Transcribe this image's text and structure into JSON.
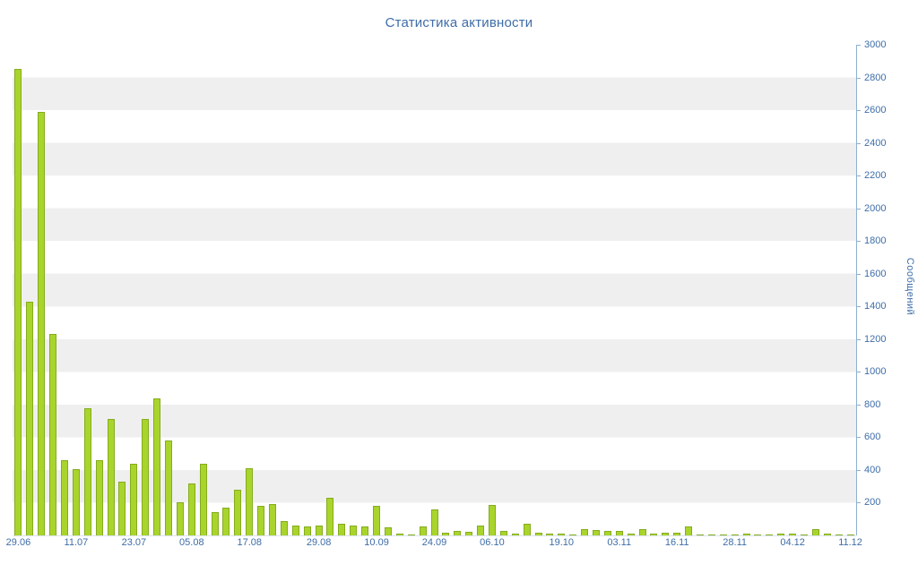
{
  "page": {
    "title": "Статистика активности"
  },
  "colors": {
    "text": "#3E6DA8",
    "axis": "#8FAFD2",
    "band": "#EFEFEF",
    "bar_fill": "#A9D42C",
    "bar_border": "#85AC1E",
    "background": "#FFFFFF"
  },
  "chart_data": {
    "type": "bar",
    "title": "Статистика активности",
    "xlabel": "",
    "ylabel": "Сообщений",
    "ylim": [
      0,
      3000
    ],
    "y_tick_step": 200,
    "y_ticks": [
      200,
      400,
      600,
      800,
      1000,
      1200,
      1400,
      1600,
      1800,
      2000,
      2200,
      2400,
      2600,
      2800,
      3000
    ],
    "grid": "alternating horizontal bands every 200 units, white and light gray",
    "legend": "none",
    "x_ticks": [
      {
        "label": "29.06",
        "index": 0
      },
      {
        "label": "11.07",
        "index": 5
      },
      {
        "label": "23.07",
        "index": 10
      },
      {
        "label": "05.08",
        "index": 15
      },
      {
        "label": "17.08",
        "index": 20
      },
      {
        "label": "29.08",
        "index": 26
      },
      {
        "label": "10.09",
        "index": 31
      },
      {
        "label": "24.09",
        "index": 36
      },
      {
        "label": "06.10",
        "index": 41
      },
      {
        "label": "19.10",
        "index": 47
      },
      {
        "label": "03.11",
        "index": 52
      },
      {
        "label": "16.11",
        "index": 57
      },
      {
        "label": "28.11",
        "index": 62
      },
      {
        "label": "04.12",
        "index": 67
      },
      {
        "label": "11.12",
        "index": 72
      }
    ],
    "values": [
      2850,
      1430,
      2590,
      1230,
      460,
      405,
      780,
      460,
      710,
      330,
      440,
      710,
      840,
      580,
      200,
      320,
      440,
      140,
      170,
      280,
      410,
      180,
      190,
      90,
      60,
      55,
      60,
      230,
      70,
      60,
      55,
      180,
      50,
      10,
      8,
      55,
      160,
      15,
      25,
      20,
      60,
      185,
      25,
      10,
      70,
      15,
      12,
      10,
      8,
      40,
      35,
      30,
      25,
      12,
      40,
      12,
      18,
      15,
      55,
      8,
      6,
      5,
      5,
      10,
      6,
      4,
      12,
      10,
      6,
      40,
      12,
      5,
      4
    ]
  }
}
